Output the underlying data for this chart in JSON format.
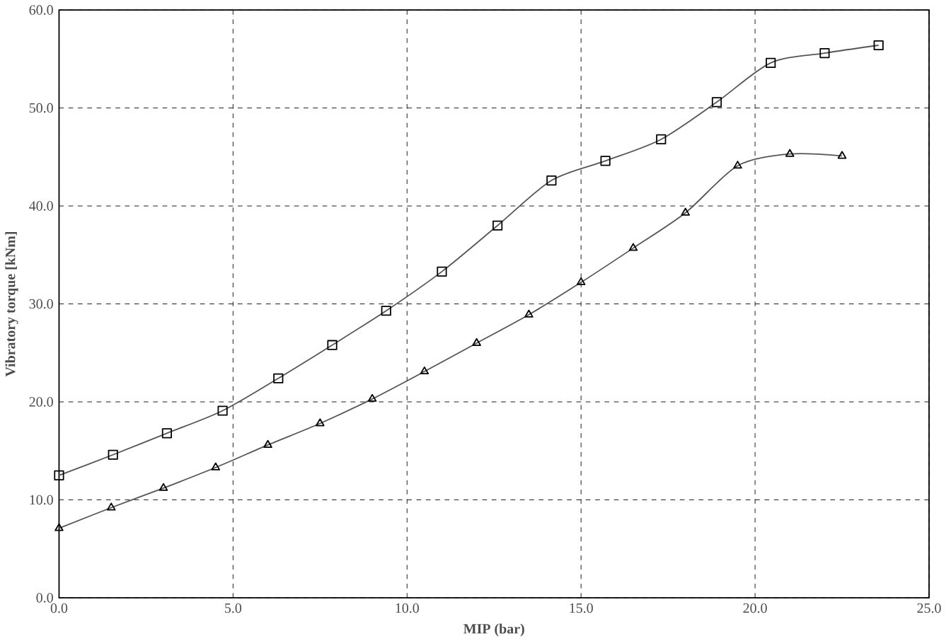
{
  "chart_data": {
    "type": "line",
    "xlabel": "MIP (bar)",
    "ylabel": "Vibratory  torque [kNm]",
    "xlim": [
      0,
      25
    ],
    "ylim": [
      0,
      60
    ],
    "xticks": [
      {
        "value": 0,
        "label": "0.0"
      },
      {
        "value": 5,
        "label": "5.0"
      },
      {
        "value": 10,
        "label": "10.0"
      },
      {
        "value": 15,
        "label": "15.0"
      },
      {
        "value": 20,
        "label": "20.0"
      },
      {
        "value": 25,
        "label": "25.0"
      }
    ],
    "yticks": [
      {
        "value": 0,
        "label": "0.0"
      },
      {
        "value": 10,
        "label": "10.0"
      },
      {
        "value": 20,
        "label": "20.0"
      },
      {
        "value": 30,
        "label": "30.0"
      },
      {
        "value": 40,
        "label": "40.0"
      },
      {
        "value": 50,
        "label": "50.0"
      },
      {
        "value": 60,
        "label": "60.0"
      }
    ],
    "grid": true,
    "series": [
      {
        "color": "#555555",
        "marker": "triangle",
        "x": [
          0,
          1.5,
          3.0,
          4.5,
          6.0,
          7.5,
          9.0,
          10.5,
          12.0,
          13.5,
          15.0,
          16.5,
          18.0,
          19.5,
          21.0,
          22.5
        ],
        "values": [
          7.1,
          9.2,
          11.2,
          13.3,
          15.6,
          17.8,
          20.3,
          23.1,
          26.0,
          28.9,
          32.2,
          35.7,
          39.3,
          44.1,
          45.3,
          45.1
        ]
      },
      {
        "color": "#555555",
        "marker": "square",
        "x": [
          0,
          1.55,
          3.1,
          4.7,
          6.3,
          7.85,
          9.4,
          11.0,
          12.6,
          14.15,
          15.7,
          17.3,
          18.9,
          20.45,
          22.0,
          23.55
        ],
        "values": [
          12.5,
          14.6,
          16.8,
          19.1,
          22.4,
          25.8,
          29.3,
          33.3,
          38.0,
          42.6,
          44.6,
          46.8,
          50.6,
          54.6,
          55.6,
          56.4
        ]
      }
    ]
  }
}
